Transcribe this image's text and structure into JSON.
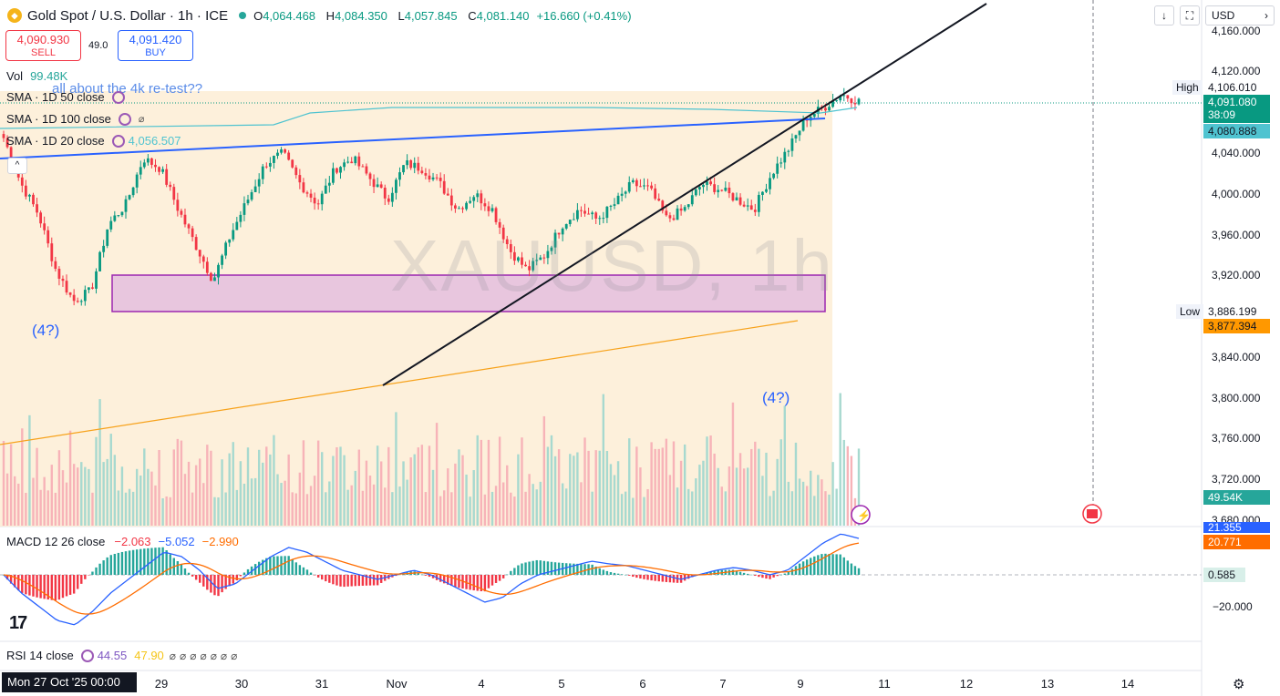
{
  "header": {
    "symbol": "Gold Spot / U.S. Dollar · 1h · ICE",
    "o_key": "O",
    "o": "4,064.468",
    "h_key": "H",
    "h": "4,084.350",
    "l_key": "L",
    "l": "4,057.845",
    "c_key": "C",
    "c": "4,081.140",
    "change": "+16.660 (+0.41%)",
    "currency": "USD"
  },
  "trade": {
    "sell_price": "4,090.930",
    "sell_label": "SELL",
    "spread": "49.0",
    "buy_price": "4,091.420",
    "buy_label": "BUY"
  },
  "legend": {
    "vol_label": "Vol",
    "vol_value": "99.48",
    "vol_unit": "K",
    "sma50": "SMA · 1D 50 close",
    "sma100": "SMA · 1D 100 close",
    "sma20": "SMA · 1D 20 close",
    "sma20_value": "4,056.507"
  },
  "annotations": {
    "retest": "all about the 4k re-test??",
    "wave_left": "(4?)",
    "wave_right": "(4?)",
    "watermark": "XAUUSD, 1h"
  },
  "price_axis": {
    "ticks": [
      "4,160.000",
      "4,120.000",
      "4,040.000",
      "4,000.000",
      "3,960.000",
      "3,920.000",
      "3,840.000",
      "3,800.000",
      "3,760.000",
      "3,720.000",
      "3,680.000"
    ],
    "high_label": "High",
    "high_value": "4,106.010",
    "last_price": "4,091.080",
    "countdown": "38:09",
    "sma_tag": "4,080.888",
    "low_label": "Low",
    "low_value": "3,886.199",
    "sma100_tag": "3,877.394",
    "vol_tag": "49.54K"
  },
  "macd": {
    "label": "MACD 12 26 close",
    "hist": "−2.063",
    "macd": "−5.052",
    "signal": "−2.990",
    "tag_top": "21.355",
    "tag_signal": "20.771",
    "tag_zero": "0.585",
    "tick": "−20.000"
  },
  "rsi": {
    "label": "RSI 14 close",
    "rsi": "44.55",
    "ma": "47.90"
  },
  "time_axis": {
    "cursor": "Mon 27 Oct '25   00:00",
    "labels": [
      "29",
      "30",
      "31",
      "Nov",
      "4",
      "5",
      "6",
      "7",
      "9",
      "11",
      "12",
      "13",
      "14"
    ]
  },
  "colors": {
    "up": "#089981",
    "down": "#f23645",
    "range_fill": "#fdecd2",
    "zone": "#e8c6de",
    "zone_border": "#9c27b0",
    "trend_blue": "#2962ff",
    "trend_orange": "#f7a21b",
    "sma100": "#4fc3d0",
    "macd_line": "#2962ff",
    "signal_line": "#ff6d00"
  },
  "chart_data": {
    "type": "candlestick",
    "title": "Gold Spot / U.S. Dollar · 1h · ICE",
    "ylim": [
      3670,
      4180
    ],
    "x": [
      "29",
      "30",
      "31",
      "Nov",
      "4",
      "5",
      "6",
      "7",
      "9"
    ],
    "close_path": [
      4055,
      4010,
      3980,
      3925,
      3895,
      3905,
      3970,
      3990,
      4035,
      4025,
      3985,
      3950,
      3915,
      3960,
      3995,
      4030,
      4040,
      4010,
      3990,
      4025,
      4035,
      4015,
      3995,
      4030,
      4025,
      4010,
      3985,
      4000,
      3985,
      3945,
      3925,
      3940,
      3970,
      3985,
      3975,
      3990,
      4010,
      4005,
      3975,
      3985,
      4010,
      4005,
      3995,
      3985,
      4020,
      4045,
      4075,
      4085,
      4098,
      4091
    ],
    "high": 4106.01,
    "low": 3886.199,
    "last": 4091.08,
    "macd": {
      "hist": -2.063,
      "macd": -5.052,
      "signal": -2.99
    },
    "rsi": {
      "value": 44.55,
      "ma": 47.9
    }
  }
}
